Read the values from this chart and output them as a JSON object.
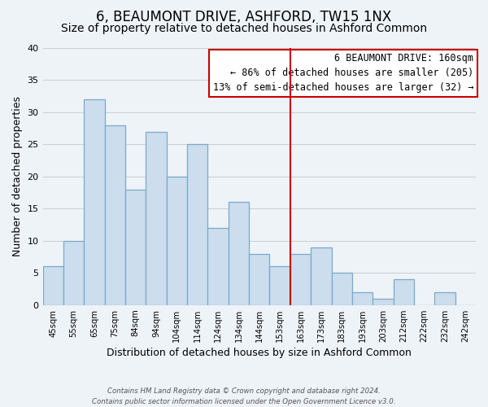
{
  "title": "6, BEAUMONT DRIVE, ASHFORD, TW15 1NX",
  "subtitle": "Size of property relative to detached houses in Ashford Common",
  "xlabel": "Distribution of detached houses by size in Ashford Common",
  "ylabel": "Number of detached properties",
  "footer_line1": "Contains HM Land Registry data © Crown copyright and database right 2024.",
  "footer_line2": "Contains public sector information licensed under the Open Government Licence v3.0.",
  "bar_labels": [
    "45sqm",
    "55sqm",
    "65sqm",
    "75sqm",
    "84sqm",
    "94sqm",
    "104sqm",
    "114sqm",
    "124sqm",
    "134sqm",
    "144sqm",
    "153sqm",
    "163sqm",
    "173sqm",
    "183sqm",
    "193sqm",
    "203sqm",
    "212sqm",
    "222sqm",
    "232sqm",
    "242sqm"
  ],
  "bar_heights": [
    6,
    10,
    32,
    28,
    18,
    27,
    20,
    25,
    12,
    16,
    8,
    6,
    8,
    9,
    5,
    2,
    1,
    4,
    0,
    2,
    0
  ],
  "bar_color": "#ccdded",
  "bar_edge_color": "#7aaac8",
  "grid_color": "#cccccc",
  "vline_x_index": 12,
  "vline_color": "#cc0000",
  "annotation_line1": "6 BEAUMONT DRIVE: 160sqm",
  "annotation_line2": "← 86% of detached houses are smaller (205)",
  "annotation_line3": "13% of semi-detached houses are larger (32) →",
  "annotation_box_color": "#ffffff",
  "annotation_box_edge_color": "#cc0000",
  "ylim": [
    0,
    40
  ],
  "yticks": [
    0,
    5,
    10,
    15,
    20,
    25,
    30,
    35,
    40
  ],
  "background_color": "#eef3f8",
  "title_fontsize": 12,
  "subtitle_fontsize": 10,
  "xlabel_fontsize": 9,
  "ylabel_fontsize": 9,
  "annotation_fontsize": 8.5
}
